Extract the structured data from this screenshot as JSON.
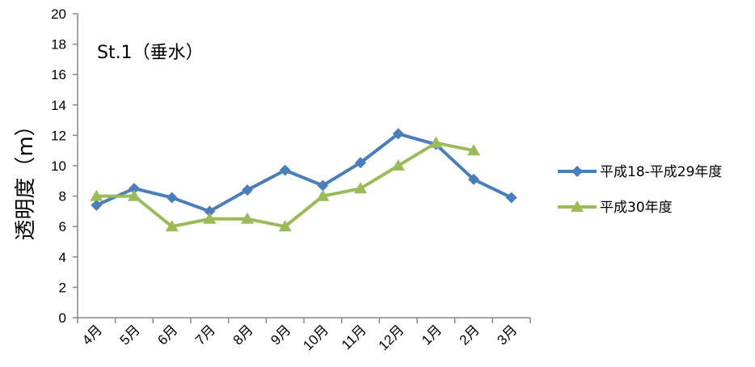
{
  "chart_data": {
    "type": "line",
    "title": "St.1（垂水）",
    "xlabel": "",
    "ylabel": "透明度（m）",
    "categories": [
      "4月",
      "5月",
      "6月",
      "7月",
      "8月",
      "9月",
      "10月",
      "11月",
      "12月",
      "1月",
      "2月",
      "3月"
    ],
    "ylim": [
      0,
      20
    ],
    "yticks": [
      0,
      2,
      4,
      6,
      8,
      10,
      12,
      14,
      16,
      18,
      20
    ],
    "grid": false,
    "legend_position": "right",
    "series": [
      {
        "name": "平成18-平成29年度",
        "color": "#4a7ebb",
        "marker": "diamond",
        "values": [
          7.4,
          8.5,
          7.9,
          7.0,
          8.4,
          9.7,
          8.7,
          10.2,
          12.1,
          11.4,
          9.1,
          7.9
        ]
      },
      {
        "name": "平成30年度",
        "color": "#9bbb59",
        "marker": "triangle",
        "values": [
          8.0,
          8.0,
          6.0,
          6.5,
          6.5,
          6.0,
          8.0,
          8.5,
          10.0,
          11.5,
          11.0,
          null
        ]
      }
    ]
  }
}
